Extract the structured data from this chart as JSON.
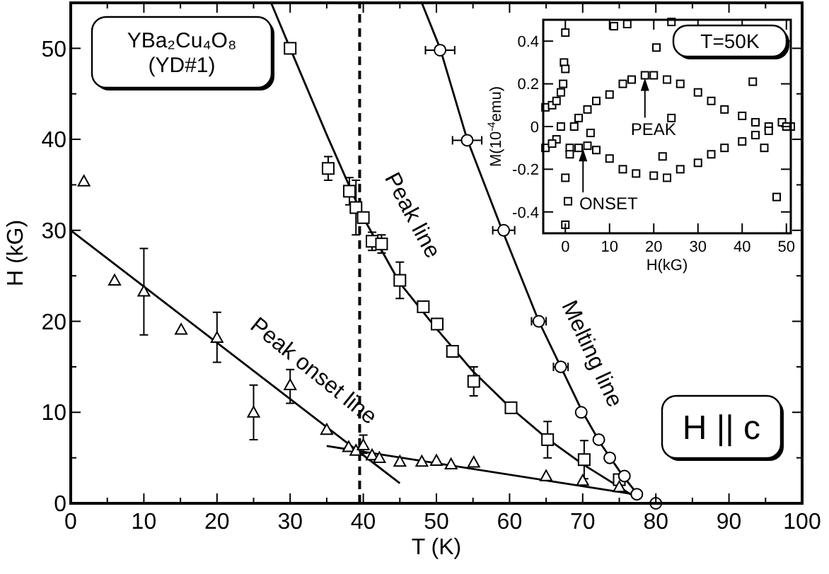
{
  "chart_data": [
    {
      "type": "scatter",
      "xlabel": "T (K)",
      "ylabel": "H (kG)",
      "xlim": [
        0,
        100
      ],
      "ylim": [
        0,
        55
      ],
      "xticks": [
        0,
        {
          "value": 5,
          "label": null
        },
        10,
        {
          "value": 15,
          "label": null
        },
        20,
        {
          "value": 25,
          "label": null
        },
        30,
        {
          "value": 35,
          "label": null
        },
        40,
        {
          "value": 45,
          "label": null
        },
        50,
        {
          "value": 55,
          "label": null
        },
        60,
        {
          "value": 65,
          "label": null
        },
        70,
        {
          "value": 75,
          "label": null
        },
        80,
        {
          "value": 85,
          "label": null
        },
        90,
        {
          "value": 95,
          "label": null
        },
        100
      ],
      "yticks": [
        0,
        {
          "value": 5,
          "label": null
        },
        10,
        {
          "value": 15,
          "label": null
        },
        20,
        {
          "value": 25,
          "label": null
        },
        30,
        {
          "value": 35,
          "label": null
        },
        40,
        {
          "value": 45,
          "label": null
        },
        50
      ],
      "series": [
        {
          "type": "line",
          "color": "#000000",
          "x": [
            0,
            45
          ],
          "values": [
            30,
            2.2
          ]
        },
        {
          "type": "line",
          "color": "#000000",
          "x": [
            35,
            77
          ],
          "values": [
            6.3,
            1
          ]
        },
        {
          "type": "line",
          "color": "#000000",
          "x": [
            27.4,
            30,
            35,
            40,
            45,
            50,
            55,
            60,
            65,
            70,
            75,
            77.5
          ],
          "values": [
            55,
            50,
            40.5,
            31.4,
            24.2,
            19.2,
            14.5,
            10.6,
            7.2,
            4.3,
            1.8,
            0.5
          ]
        },
        {
          "type": "line",
          "color": "#000000",
          "x": [
            48,
            50.5,
            54.2,
            59,
            64,
            67,
            70,
            72.5,
            75.5,
            77.5
          ],
          "values": [
            55,
            50,
            40,
            30,
            20,
            15,
            10,
            6.5,
            3,
            1
          ]
        },
        {
          "type": "scatter",
          "color": "#000000",
          "marker": "square",
          "x": [
            30,
            35.2,
            38.1,
            39,
            40,
            41.2,
            42.5,
            45,
            48.2,
            50.1,
            52.2,
            55.1,
            60.2,
            65.2,
            70.2,
            75
          ],
          "values": [
            50,
            36.8,
            34.3,
            32.5,
            31.4,
            28.8,
            28.5,
            24.5,
            21.6,
            19.7,
            16.7,
            13.4,
            10.5,
            7,
            4.8,
            2.6
          ],
          "errors": [
            null,
            1.3,
            1.5,
            3,
            null,
            1,
            1,
            2,
            null,
            null,
            null,
            1.6,
            null,
            2,
            2.1,
            null
          ]
        },
        {
          "type": "scatter",
          "color": "#000000",
          "marker": "circle",
          "x": [
            50.5,
            54.2,
            59.2,
            64,
            67,
            69.8,
            72.2,
            73.7,
            75.7,
            77.4,
            80
          ],
          "values": [
            49.8,
            39.9,
            30,
            20,
            15,
            10,
            7,
            5,
            3,
            1,
            0
          ],
          "xerrors": [
            2,
            2,
            1.5,
            1,
            1,
            null,
            null,
            null,
            null,
            null,
            null
          ]
        },
        {
          "type": "scatter",
          "color": "#000000",
          "marker": "triangle",
          "x": [
            1.8,
            6,
            10,
            15.1,
            20,
            25,
            30,
            35,
            38,
            39,
            40,
            41.2,
            42.2,
            45,
            48,
            50,
            52,
            55.1,
            65,
            70,
            75
          ],
          "values": [
            35.4,
            24.5,
            23.3,
            19.1,
            18.2,
            10,
            13,
            8.1,
            6.2,
            5.8,
            6.4,
            5.3,
            5,
            4.6,
            4.6,
            4.7,
            4.3,
            4.5,
            3,
            2.5,
            1.8
          ],
          "errors": [
            null,
            null,
            [
              18.5,
              28
            ],
            null,
            [
              15.5,
              21
            ],
            [
              7,
              13
            ],
            [
              11,
              14.7
            ],
            null,
            null,
            null,
            [
              5.5,
              7.5
            ],
            null,
            null,
            null,
            null,
            null,
            null,
            null,
            null,
            null,
            null
          ]
        }
      ],
      "ref_lines": [
        {
          "axis": "x",
          "value": 39.5,
          "line_style": "dashed",
          "color": "#000000"
        }
      ],
      "annotations": [
        "YBa₂Cu₄O₈\n(YD#1)",
        "H || c",
        "Peak line",
        "Peak onset line",
        "Melting line"
      ]
    },
    {
      "type": "scatter",
      "xlabel": "H(kG)",
      "ylabel": "M(10$^{-4}$emu)",
      "xlim": [
        -5,
        51
      ],
      "ylim": [
        -0.5,
        0.5
      ],
      "xticks": [
        0,
        10,
        20,
        30,
        40,
        50
      ],
      "yticks": [
        {
          "value": -0.4,
          "label": "-0.4"
        },
        {
          "value": -0.2,
          "label": "-0.2"
        },
        0,
        0.2,
        0.4
      ],
      "series": [
        {
          "type": "scatter",
          "color": "#000000",
          "marker": "square",
          "x": [
            -4.5,
            -4.5,
            -3,
            -2,
            -1,
            -0.5,
            -0.3,
            0,
            -1,
            -2,
            -3,
            0,
            1,
            2,
            3,
            5,
            7,
            10,
            13,
            15,
            18,
            20,
            23,
            26,
            30,
            33,
            36,
            40,
            43,
            46,
            49,
            51,
            1,
            3,
            5,
            7,
            10,
            13,
            16,
            20,
            23,
            26,
            30,
            33,
            36,
            40,
            43,
            46,
            50,
            0,
            0,
            0.6,
            11,
            14,
            24,
            20.6,
            24,
            42.4,
            5.7,
            22,
            47.8,
            45
          ],
          "values": [
            0.09,
            -0.1,
            0.1,
            0.12,
            0.16,
            0.2,
            0.3,
            0.27,
            0,
            -0.06,
            -0.08,
            -0.24,
            -0.1,
            0,
            0.04,
            0.08,
            0.12,
            0.15,
            0.2,
            0.22,
            0.24,
            0.24,
            0.22,
            0.2,
            0.16,
            0.12,
            0.08,
            0.05,
            0.02,
            0,
            0.02,
            0,
            -0.13,
            -0.1,
            -0.09,
            -0.11,
            -0.15,
            -0.2,
            -0.22,
            -0.23,
            -0.24,
            -0.2,
            -0.17,
            -0.13,
            -0.1,
            -0.07,
            -0.04,
            -0.02,
            0,
            0.44,
            -0.46,
            -0.35,
            0.47,
            0.48,
            0.49,
            0.37,
            0.04,
            0.21,
            -0.03,
            -0.14,
            -0.33,
            -0.1
          ]
        }
      ],
      "annotations": [
        "T=50K",
        {
          "text": "PEAK",
          "x": 18,
          "y": 0.24
        },
        {
          "text": "ONSET",
          "x": 4,
          "y": -0.09
        }
      ]
    }
  ]
}
